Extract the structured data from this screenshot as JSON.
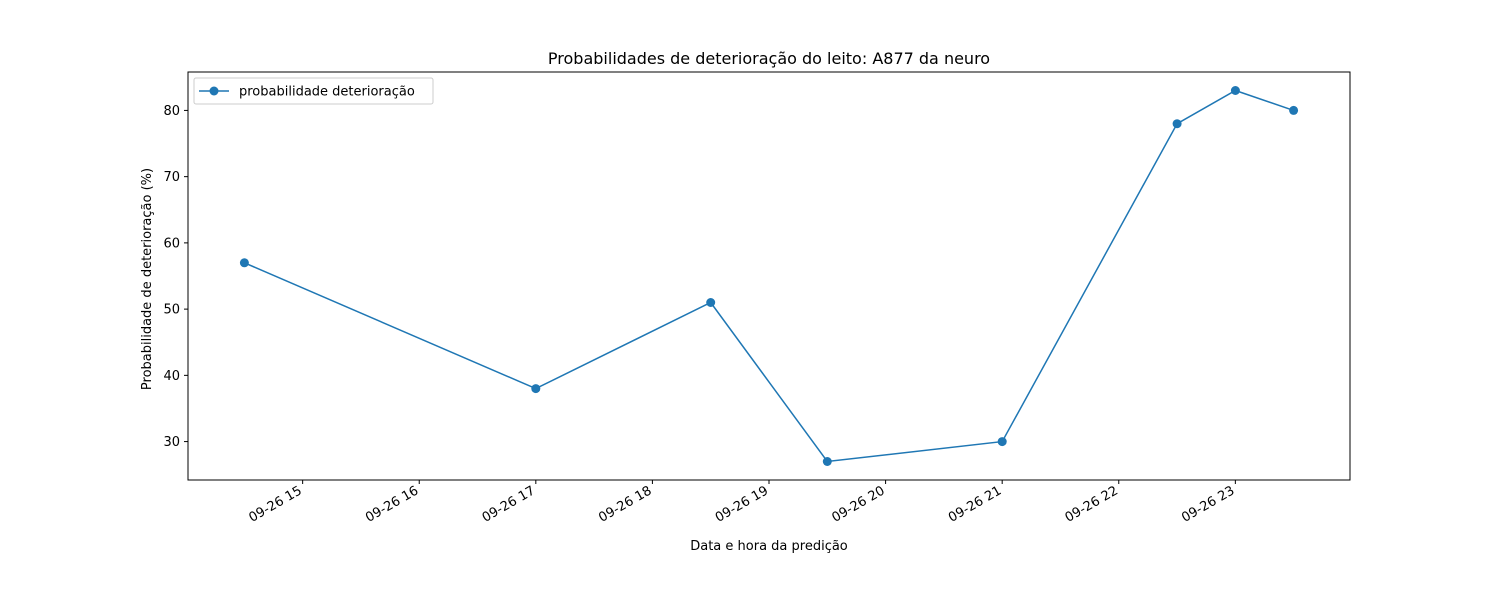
{
  "chart_data": {
    "type": "line",
    "title": "Probabilidades de deterioração do leito: A877 da neuro",
    "xlabel": "Data e hora da predição",
    "ylabel": "Probabilidade de deterioração (%)",
    "x_tick_labels": [
      "09-26 15",
      "09-26 16",
      "09-26 17",
      "09-26 18",
      "09-26 19",
      "09-26 20",
      "09-26 21",
      "09-26 22",
      "09-26 23"
    ],
    "y_ticks": [
      30,
      40,
      50,
      60,
      70,
      80
    ],
    "xlim": [
      "09-26 14:01",
      "09-26 23:59"
    ],
    "ylim": [
      24.2,
      85.8
    ],
    "grid": false,
    "legend_position": "upper-left",
    "series": [
      {
        "name": "probabilidade deterioração",
        "color": "#1f77b4",
        "marker": "circle",
        "x": [
          "09-26 14:30",
          "09-26 17:00",
          "09-26 18:30",
          "09-26 19:30",
          "09-26 21:00",
          "09-26 22:30",
          "09-26 23:00",
          "09-26 23:30"
        ],
        "y": [
          57,
          38,
          51,
          27,
          30,
          78,
          83,
          80
        ]
      }
    ]
  }
}
